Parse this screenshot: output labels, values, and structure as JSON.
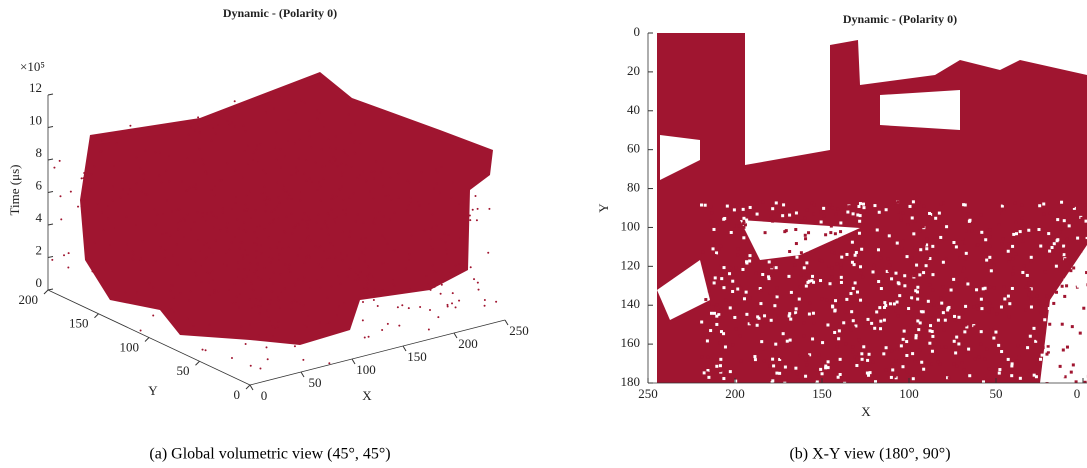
{
  "chart_data": [
    {
      "type": "scatter3d",
      "title": "Dynamic - (Polarity 0)",
      "color": "#a01530",
      "xlabel": "X",
      "ylabel": "Y",
      "zlabel": "Time (μs)",
      "z_multiplier": "×10⁵",
      "xlim": [
        0,
        250
      ],
      "xticks": [
        0,
        50,
        100,
        150,
        200,
        250
      ],
      "ylim": [
        0,
        200
      ],
      "yticks": [
        0,
        50,
        100,
        150,
        200
      ],
      "zlim": [
        0,
        12
      ],
      "zticks": [
        0,
        2,
        4,
        6,
        8,
        10,
        12
      ]
    },
    {
      "type": "scatter",
      "title": "Dynamic - (Polarity 0)",
      "color": "#a01530",
      "xlabel": "X",
      "ylabel": "Y",
      "xlim": [
        0,
        250
      ],
      "xticks": [
        0,
        50,
        100,
        150,
        200,
        250
      ],
      "x_reversed": true,
      "ylim": [
        0,
        180
      ],
      "yticks": [
        0,
        20,
        40,
        60,
        80,
        100,
        120,
        140,
        160,
        180
      ],
      "y_reversed": true
    }
  ],
  "captions": [
    "(a)  Global volumetric view (45°, 45°)",
    "(b)  X-Y view (180°, 90°)"
  ]
}
